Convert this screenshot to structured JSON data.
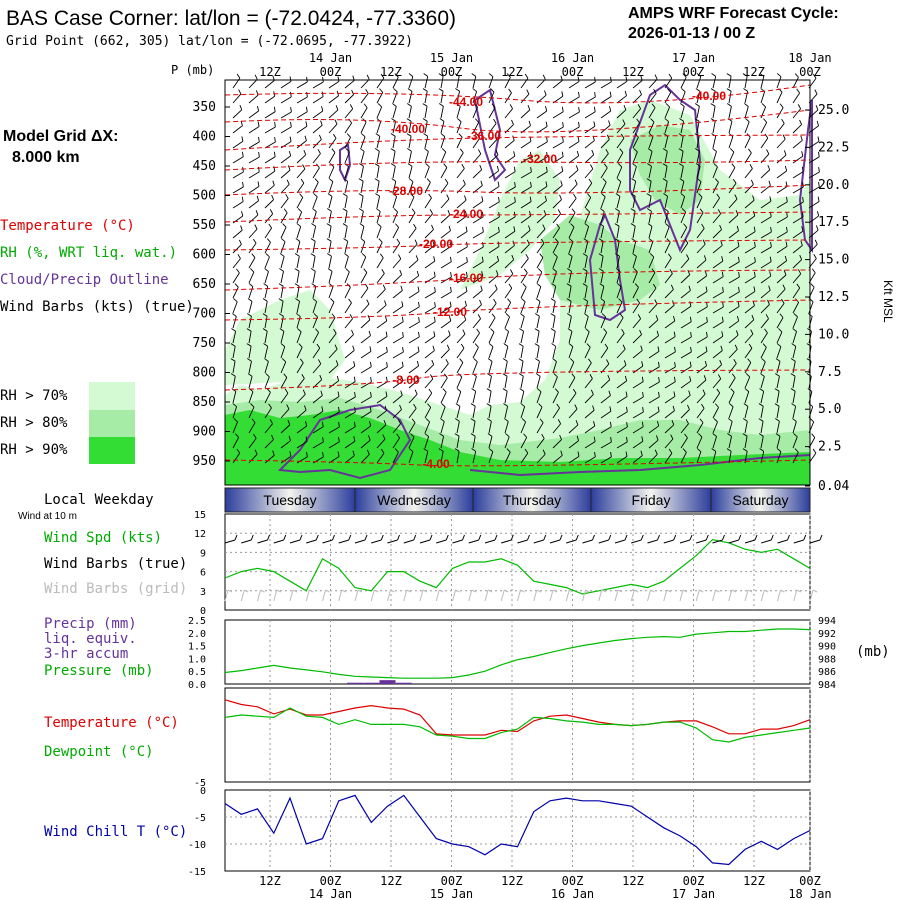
{
  "header": {
    "title": "BAS Case Corner:  lat/lon = (-72.0424, -77.3360)",
    "subtitle": "Grid Point (662, 305) lat/lon = (-72.0695, -77.3922)",
    "cycle_label": "AMPS WRF Forecast Cycle:",
    "cycle_value": "2026-01-13 / 00  Z"
  },
  "left_labels": {
    "model_grid_1": "Model Grid ΔX:",
    "model_grid_2": "8.000 km",
    "temperature": "Temperature (°C)",
    "rh": "RH (%, WRT liq. wat.)",
    "cloud": "Cloud/Precip Outline",
    "wind_barbs": "Wind Barbs (kts) (true)",
    "rh70": "RH > 70%",
    "rh80": "RH > 80%",
    "rh90": "RH > 90%",
    "local_weekday": "Local Weekday",
    "wind_at_10m": "Wind at 10 m",
    "wind_spd": "Wind Spd (kts)",
    "wind_barbs_true": "Wind Barbs (true)",
    "wind_barbs_grid": "Wind Barbs (grid)",
    "precip": "Precip (mm)",
    "liq_equiv": "liq. equiv.",
    "accum": "3-hr accum",
    "pressure": "Pressure (mb)",
    "mb_unit": "(mb)",
    "temp2": "Temperature (°C)",
    "dewpoint": "Dewpoint (°C)",
    "windchill": "Wind Chill T (°C)"
  },
  "colors": {
    "temperature": "#dd0000",
    "rh70": "#d4fad4",
    "rh80": "#a6eca6",
    "rh90": "#33dd33",
    "cloud": "#663399",
    "green": "#00bb00",
    "windchill": "#0000aa",
    "grey": "#bbbbbb"
  },
  "time_axis": {
    "hour_labels": [
      "12Z",
      "00Z",
      "12Z",
      "00Z",
      "12Z",
      "00Z",
      "12Z",
      "00Z",
      "12Z",
      "00Z"
    ],
    "date_labels": [
      "14 Jan",
      "15 Jan",
      "16 Jan",
      "17 Jan",
      "18 Jan"
    ],
    "weekdays": [
      "Tuesday",
      "Wednesday",
      "Thursday",
      "Friday",
      "Saturday"
    ]
  },
  "chart_data": [
    {
      "type": "heatmap",
      "name": "vertical cross-section",
      "ylabel_left": "P (mb)",
      "ylabel_right": "Kft MSL",
      "pressure_ticks": [
        "350",
        "400",
        "450",
        "500",
        "550",
        "600",
        "650",
        "700",
        "750",
        "800",
        "850",
        "900",
        "950"
      ],
      "height_ticks": [
        "25.0",
        "22.5",
        "20.0",
        "17.5",
        "15.0",
        "12.5",
        "10.0",
        "7.5",
        "5.0",
        "2.5",
        "0.04"
      ],
      "temperature_labels": [
        "-44.00",
        "-40.00",
        "-40.00",
        "-36.00",
        "-32.00",
        "-28.00",
        "-24.00",
        "-20.00",
        "-16.00",
        "-12.00",
        "-8.00",
        "-4.00"
      ]
    },
    {
      "type": "line",
      "name": "wind speed",
      "y_ticks": [
        "15",
        "12",
        "9",
        "6",
        "3",
        "0"
      ],
      "ylim": [
        0,
        15
      ],
      "values": [
        5,
        6,
        6.5,
        6,
        4.5,
        3,
        8,
        6.5,
        3.5,
        3,
        6,
        6,
        4.5,
        3.5,
        6.5,
        7.5,
        7.5,
        8,
        7,
        4.5,
        4,
        3.5,
        2.5,
        3,
        3.5,
        4,
        3.5,
        4.5,
        6.5,
        8.5,
        11,
        10.5,
        9.5,
        9,
        9.5,
        8,
        6.5
      ]
    },
    {
      "type": "line",
      "name": "precipitation and pressure",
      "y_ticks_left": [
        "2.5",
        "2.0",
        "1.5",
        "1.0",
        "0.5",
        "0.0"
      ],
      "y_ticks_right": [
        "994",
        "992",
        "990",
        "988",
        "986",
        "984"
      ],
      "ylim_precip": [
        0,
        2.5
      ],
      "ylim_pressure": [
        984,
        994
      ],
      "pressure": [
        985.8,
        986.1,
        986.5,
        986.9,
        986.5,
        986.2,
        985.9,
        985.5,
        985.2,
        985.1,
        985.0,
        984.9,
        984.9,
        984.9,
        985.0,
        985.4,
        986.0,
        987.0,
        987.8,
        988.3,
        988.9,
        989.5,
        990.0,
        990.4,
        990.8,
        991.1,
        991.3,
        991.4,
        991.3,
        991.8,
        992.0,
        992.2,
        992.2,
        992.4,
        992.6,
        992.6,
        992.5
      ],
      "precip": [
        0,
        0,
        0,
        0,
        0,
        0,
        0,
        0,
        0.05,
        0.05,
        0.15,
        0.05,
        0,
        0,
        0,
        0,
        0,
        0,
        0,
        0,
        0,
        0,
        0,
        0,
        0,
        0,
        0,
        0,
        0,
        0,
        0,
        0,
        0,
        0,
        0,
        0,
        0
      ]
    },
    {
      "type": "line",
      "name": "temperature and dewpoint",
      "y_ticks": [
        "-5"
      ],
      "ylim": [
        -6,
        2
      ],
      "temperature": [
        1.0,
        0.6,
        0.4,
        -0.2,
        0.2,
        -0.3,
        -0.3,
        0.0,
        0.3,
        0.5,
        0.3,
        0.2,
        -0.3,
        -1.9,
        -2.0,
        -2.0,
        -2.0,
        -1.6,
        -1.7,
        -0.8,
        -0.4,
        -0.3,
        -0.6,
        -0.9,
        -1.1,
        -1.2,
        -1.1,
        -0.9,
        -0.8,
        -0.8,
        -1.3,
        -1.9,
        -1.9,
        -1.5,
        -1.5,
        -1.2,
        -0.7
      ],
      "dewpoint": [
        -0.5,
        -0.3,
        -0.4,
        -0.5,
        0.3,
        -0.4,
        -0.5,
        -1.1,
        -0.7,
        -1.1,
        -1.1,
        -1.1,
        -1.3,
        -2.0,
        -2.1,
        -2.3,
        -2.3,
        -1.8,
        -1.5,
        -0.5,
        -0.6,
        -0.8,
        -0.9,
        -1.1,
        -1.1,
        -1.2,
        -1.1,
        -0.9,
        -0.9,
        -1.4,
        -2.4,
        -2.6,
        -2.2,
        -2.0,
        -1.8,
        -1.6,
        -1.4
      ]
    },
    {
      "type": "line",
      "name": "wind chill",
      "y_ticks": [
        "0",
        "-5",
        "-10",
        "-15"
      ],
      "ylim": [
        -15,
        0
      ],
      "values": [
        -2.5,
        -4.5,
        -3.5,
        -8,
        -1.5,
        -10,
        -9,
        -2,
        -1,
        -6,
        -3,
        -1,
        -5,
        -9,
        -10,
        -10.5,
        -12,
        -10,
        -10.5,
        -4,
        -2,
        -1.5,
        -2,
        -2,
        -2.5,
        -3,
        -5,
        -7,
        -8.5,
        -10.5,
        -13.5,
        -13.8,
        -11,
        -9.5,
        -11,
        -9,
        -7.5
      ]
    }
  ]
}
